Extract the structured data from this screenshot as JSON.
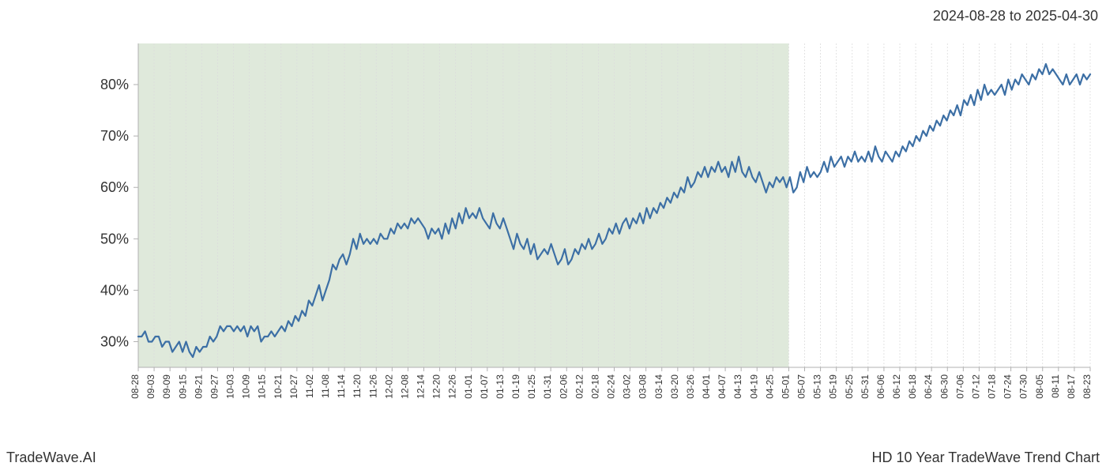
{
  "header": {
    "date_range": "2024-08-28 to 2025-04-30"
  },
  "footer": {
    "left": "TradeWave.AI",
    "right": "HD 10 Year TradeWave Trend Chart"
  },
  "chart": {
    "type": "line",
    "background_color": "#ffffff",
    "highlight_region": {
      "fill": "#dfe9db",
      "start_tick": "08-28",
      "end_tick": "05-01"
    },
    "grid": {
      "vlines_color": "#dcdcdc",
      "vlines_dash": "2,2",
      "stroke_width": 0.8
    },
    "axes_border_color": "#b0b0b0",
    "line": {
      "color": "#3c6fa5",
      "width": 2.2
    },
    "y_axis": {
      "ticks": [
        30,
        40,
        50,
        60,
        70,
        80
      ],
      "tick_suffix": "%",
      "min": 25,
      "max": 88
    },
    "x_axis": {
      "ticks": [
        "08-28",
        "09-03",
        "09-09",
        "09-15",
        "09-21",
        "09-27",
        "10-03",
        "10-09",
        "10-15",
        "10-21",
        "10-27",
        "11-02",
        "11-08",
        "11-14",
        "11-20",
        "11-26",
        "12-02",
        "12-08",
        "12-14",
        "12-20",
        "12-26",
        "01-01",
        "01-07",
        "01-13",
        "01-19",
        "01-25",
        "01-31",
        "02-06",
        "02-12",
        "02-18",
        "02-24",
        "03-02",
        "03-08",
        "03-14",
        "03-20",
        "03-26",
        "04-01",
        "04-07",
        "04-13",
        "04-19",
        "04-25",
        "05-01",
        "05-07",
        "05-13",
        "05-19",
        "05-25",
        "05-31",
        "06-06",
        "06-12",
        "06-18",
        "06-24",
        "06-30",
        "07-06",
        "07-12",
        "07-18",
        "07-24",
        "07-30",
        "08-05",
        "08-11",
        "08-17",
        "08-23"
      ]
    },
    "series": {
      "values": [
        31,
        31,
        32,
        30,
        30,
        31,
        31,
        29,
        30,
        30,
        28,
        29,
        30,
        28,
        30,
        28,
        27,
        29,
        28,
        29,
        29,
        31,
        30,
        31,
        33,
        32,
        33,
        33,
        32,
        33,
        32,
        33,
        31,
        33,
        32,
        33,
        30,
        31,
        31,
        32,
        31,
        32,
        33,
        32,
        34,
        33,
        35,
        34,
        36,
        35,
        38,
        37,
        39,
        41,
        38,
        40,
        42,
        45,
        44,
        46,
        47,
        45,
        47,
        50,
        48,
        51,
        49,
        50,
        49,
        50,
        49,
        51,
        50,
        50,
        52,
        51,
        53,
        52,
        53,
        52,
        54,
        53,
        54,
        53,
        52,
        50,
        52,
        51,
        52,
        50,
        53,
        51,
        54,
        52,
        55,
        53,
        56,
        54,
        55,
        54,
        56,
        54,
        53,
        52,
        55,
        53,
        52,
        54,
        52,
        50,
        48,
        51,
        49,
        48,
        50,
        47,
        49,
        46,
        47,
        48,
        47,
        49,
        47,
        45,
        46,
        48,
        45,
        46,
        48,
        47,
        49,
        48,
        50,
        48,
        49,
        51,
        49,
        50,
        52,
        51,
        53,
        51,
        53,
        54,
        52,
        54,
        53,
        55,
        53,
        56,
        54,
        56,
        55,
        57,
        56,
        58,
        57,
        59,
        58,
        60,
        59,
        62,
        60,
        61,
        63,
        62,
        64,
        62,
        64,
        63,
        65,
        63,
        64,
        62,
        65,
        63,
        66,
        63,
        62,
        64,
        62,
        61,
        63,
        61,
        59,
        61,
        60,
        62,
        61,
        62,
        60,
        62,
        59,
        60,
        63,
        61,
        64,
        62,
        63,
        62,
        63,
        65,
        63,
        66,
        64,
        65,
        66,
        64,
        66,
        65,
        67,
        65,
        66,
        65,
        67,
        65,
        68,
        66,
        65,
        67,
        66,
        65,
        67,
        66,
        68,
        67,
        69,
        68,
        70,
        69,
        71,
        70,
        72,
        71,
        73,
        72,
        74,
        73,
        75,
        74,
        76,
        74,
        77,
        76,
        78,
        76,
        79,
        77,
        80,
        78,
        79,
        78,
        79,
        80,
        78,
        81,
        79,
        81,
        80,
        82,
        81,
        80,
        82,
        81,
        83,
        82,
        84,
        82,
        83,
        82,
        81,
        80,
        82,
        80,
        81,
        82,
        80,
        82,
        81,
        82
      ]
    }
  }
}
